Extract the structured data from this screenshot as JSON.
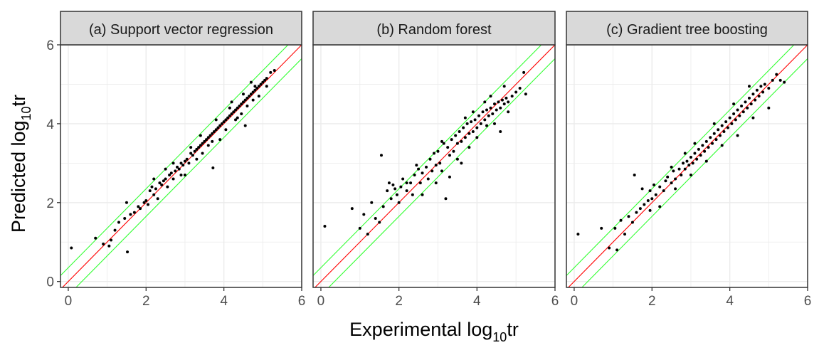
{
  "figure": {
    "xlabel_main": "Experimental log",
    "xlabel_sub": "10",
    "xlabel_tail": "tr",
    "ylabel_main": "Predicted log",
    "ylabel_sub": "10",
    "ylabel_tail": "tr"
  },
  "colors": {
    "identity_line": "#ff0000",
    "band_line": "#33ff33",
    "point": "#000000",
    "strip_fill": "#d9d9d9",
    "grid": "#ebebeb"
  },
  "chart_data": [
    {
      "type": "scatter",
      "title": "(a) Support vector regression",
      "xlim": [
        -0.2,
        6
      ],
      "ylim": [
        -0.15,
        6
      ],
      "xticks": [
        "0",
        "2",
        "4",
        "6"
      ],
      "yticks": [
        "0",
        "2",
        "4",
        "6"
      ],
      "xtick_values": [
        0,
        2,
        4,
        6
      ],
      "ytick_values": [
        0,
        2,
        4,
        6
      ],
      "identity_line": {
        "slope": 1,
        "intercept": 0
      },
      "band_lines": [
        {
          "slope": 1,
          "intercept": 0.35
        },
        {
          "slope": 1,
          "intercept": -0.35
        }
      ],
      "points": [
        [
          0.08,
          0.85
        ],
        [
          0.7,
          1.1
        ],
        [
          0.9,
          0.95
        ],
        [
          1.05,
          0.9
        ],
        [
          1.1,
          1.05
        ],
        [
          1.2,
          1.3
        ],
        [
          1.3,
          1.5
        ],
        [
          1.45,
          1.6
        ],
        [
          1.5,
          2.0
        ],
        [
          1.52,
          0.75
        ],
        [
          1.6,
          1.7
        ],
        [
          1.7,
          1.75
        ],
        [
          1.8,
          1.9
        ],
        [
          1.85,
          1.85
        ],
        [
          1.95,
          2.0
        ],
        [
          2.0,
          2.05
        ],
        [
          2.05,
          1.95
        ],
        [
          2.1,
          2.3
        ],
        [
          2.15,
          2.4
        ],
        [
          2.2,
          2.2
        ],
        [
          2.25,
          2.35
        ],
        [
          2.3,
          2.1
        ],
        [
          2.35,
          2.5
        ],
        [
          2.4,
          2.45
        ],
        [
          2.45,
          2.55
        ],
        [
          2.5,
          2.6
        ],
        [
          2.55,
          2.4
        ],
        [
          2.6,
          2.7
        ],
        [
          2.65,
          2.75
        ],
        [
          2.7,
          2.6
        ],
        [
          2.75,
          2.8
        ],
        [
          2.8,
          2.9
        ],
        [
          2.85,
          2.85
        ],
        [
          2.9,
          3.0
        ],
        [
          2.95,
          2.95
        ],
        [
          3.0,
          3.05
        ],
        [
          3.05,
          3.1
        ],
        [
          3.1,
          3.0
        ],
        [
          3.15,
          3.25
        ],
        [
          3.2,
          3.2
        ],
        [
          3.25,
          3.3
        ],
        [
          3.3,
          3.35
        ],
        [
          3.35,
          3.4
        ],
        [
          3.4,
          3.45
        ],
        [
          3.45,
          3.5
        ],
        [
          3.5,
          3.55
        ],
        [
          3.55,
          3.6
        ],
        [
          3.6,
          3.65
        ],
        [
          3.65,
          3.7
        ],
        [
          3.7,
          3.75
        ],
        [
          3.72,
          2.88
        ],
        [
          3.75,
          3.8
        ],
        [
          3.8,
          3.85
        ],
        [
          3.85,
          3.9
        ],
        [
          3.9,
          3.95
        ],
        [
          3.95,
          4.0
        ],
        [
          4.0,
          4.05
        ],
        [
          4.05,
          4.1
        ],
        [
          4.1,
          4.15
        ],
        [
          4.15,
          4.2
        ],
        [
          4.2,
          4.25
        ],
        [
          4.25,
          4.3
        ],
        [
          4.3,
          4.35
        ],
        [
          4.35,
          4.4
        ],
        [
          4.4,
          4.45
        ],
        [
          4.45,
          4.5
        ],
        [
          4.5,
          4.55
        ],
        [
          4.55,
          4.6
        ],
        [
          4.6,
          4.65
        ],
        [
          4.65,
          4.7
        ],
        [
          4.7,
          4.75
        ],
        [
          4.75,
          4.8
        ],
        [
          4.8,
          4.85
        ],
        [
          4.85,
          4.9
        ],
        [
          4.9,
          4.95
        ],
        [
          4.95,
          5.0
        ],
        [
          5.0,
          5.05
        ],
        [
          5.05,
          5.1
        ],
        [
          5.1,
          5.15
        ],
        [
          5.2,
          5.3
        ],
        [
          5.3,
          5.35
        ],
        [
          4.55,
          3.95
        ],
        [
          3.4,
          3.7
        ],
        [
          4.2,
          4.55
        ],
        [
          3.0,
          2.7
        ],
        [
          2.5,
          2.85
        ],
        [
          4.7,
          5.05
        ],
        [
          3.9,
          3.6
        ],
        [
          4.3,
          4.1
        ],
        [
          3.6,
          3.45
        ],
        [
          4.45,
          4.25
        ],
        [
          2.7,
          3.0
        ],
        [
          3.3,
          3.1
        ],
        [
          4.05,
          3.85
        ],
        [
          4.6,
          4.45
        ],
        [
          4.9,
          4.7
        ],
        [
          3.8,
          4.1
        ],
        [
          2.2,
          2.6
        ],
        [
          3.45,
          3.25
        ],
        [
          4.15,
          4.4
        ],
        [
          4.75,
          4.6
        ],
        [
          2.9,
          2.7
        ],
        [
          3.15,
          3.4
        ],
        [
          3.7,
          3.55
        ],
        [
          4.35,
          4.15
        ],
        [
          4.5,
          4.75
        ],
        [
          4.8,
          4.95
        ],
        [
          5.1,
          4.95
        ]
      ]
    },
    {
      "type": "scatter",
      "title": "(b) Random forest",
      "xlim": [
        -0.2,
        6
      ],
      "ylim": [
        -0.15,
        6
      ],
      "xticks": [
        "0",
        "2",
        "4",
        "6"
      ],
      "yticks": [
        "0",
        "2",
        "4",
        "6"
      ],
      "xtick_values": [
        0,
        2,
        4,
        6
      ],
      "ytick_values": [
        0,
        2,
        4,
        6
      ],
      "identity_line": {
        "slope": 1,
        "intercept": 0
      },
      "band_lines": [
        {
          "slope": 1,
          "intercept": 0.35
        },
        {
          "slope": 1,
          "intercept": -0.35
        }
      ],
      "points": [
        [
          0.1,
          1.4
        ],
        [
          0.8,
          1.85
        ],
        [
          1.0,
          1.35
        ],
        [
          1.1,
          1.7
        ],
        [
          1.2,
          1.2
        ],
        [
          1.3,
          2.0
        ],
        [
          1.4,
          1.6
        ],
        [
          1.5,
          1.5
        ],
        [
          1.55,
          3.2
        ],
        [
          1.6,
          1.9
        ],
        [
          1.7,
          2.3
        ],
        [
          1.75,
          2.5
        ],
        [
          1.8,
          2.1
        ],
        [
          1.9,
          2.35
        ],
        [
          1.95,
          2.2
        ],
        [
          2.0,
          2.0
        ],
        [
          2.05,
          2.4
        ],
        [
          2.1,
          2.6
        ],
        [
          2.2,
          2.3
        ],
        [
          2.3,
          2.5
        ],
        [
          2.35,
          2.2
        ],
        [
          2.4,
          2.7
        ],
        [
          2.5,
          2.85
        ],
        [
          2.55,
          2.5
        ],
        [
          2.6,
          2.75
        ],
        [
          2.7,
          2.9
        ],
        [
          2.75,
          2.6
        ],
        [
          2.8,
          3.1
        ],
        [
          2.85,
          2.8
        ],
        [
          2.9,
          3.25
        ],
        [
          2.95,
          2.95
        ],
        [
          3.0,
          3.3
        ],
        [
          3.05,
          3.0
        ],
        [
          3.1,
          2.8
        ],
        [
          3.15,
          3.5
        ],
        [
          3.2,
          2.1
        ],
        [
          3.25,
          3.4
        ],
        [
          3.3,
          3.2
        ],
        [
          3.35,
          3.6
        ],
        [
          3.4,
          3.3
        ],
        [
          3.45,
          3.7
        ],
        [
          3.5,
          3.5
        ],
        [
          3.55,
          3.8
        ],
        [
          3.6,
          3.55
        ],
        [
          3.65,
          3.9
        ],
        [
          3.7,
          3.65
        ],
        [
          3.75,
          4.0
        ],
        [
          3.8,
          3.75
        ],
        [
          3.85,
          4.05
        ],
        [
          3.9,
          3.8
        ],
        [
          3.95,
          4.1
        ],
        [
          4.0,
          3.9
        ],
        [
          4.05,
          4.2
        ],
        [
          4.1,
          4.0
        ],
        [
          4.15,
          4.3
        ],
        [
          4.2,
          4.1
        ],
        [
          4.25,
          4.35
        ],
        [
          4.3,
          4.2
        ],
        [
          4.35,
          4.4
        ],
        [
          4.4,
          4.25
        ],
        [
          4.45,
          4.5
        ],
        [
          4.5,
          4.35
        ],
        [
          4.55,
          4.55
        ],
        [
          4.6,
          4.4
        ],
        [
          4.65,
          4.6
        ],
        [
          4.7,
          4.5
        ],
        [
          4.75,
          4.65
        ],
        [
          4.8,
          4.55
        ],
        [
          4.9,
          4.7
        ],
        [
          5.0,
          4.8
        ],
        [
          5.1,
          4.9
        ],
        [
          5.2,
          5.3
        ],
        [
          5.25,
          4.75
        ],
        [
          4.6,
          3.8
        ],
        [
          4.25,
          3.95
        ],
        [
          3.8,
          3.4
        ],
        [
          3.6,
          3.0
        ],
        [
          3.3,
          2.65
        ],
        [
          2.95,
          2.5
        ],
        [
          2.6,
          2.2
        ],
        [
          3.5,
          3.1
        ],
        [
          4.0,
          3.65
        ],
        [
          4.45,
          4.0
        ],
        [
          4.8,
          4.3
        ],
        [
          2.2,
          2.5
        ],
        [
          1.85,
          2.45
        ],
        [
          3.1,
          3.55
        ],
        [
          3.7,
          4.15
        ],
        [
          4.2,
          4.55
        ],
        [
          4.7,
          4.95
        ],
        [
          2.45,
          2.95
        ],
        [
          3.9,
          4.3
        ],
        [
          4.35,
          4.7
        ]
      ]
    },
    {
      "type": "scatter",
      "title": "(c) Gradient tree boosting",
      "xlim": [
        -0.2,
        6
      ],
      "ylim": [
        -0.15,
        6
      ],
      "xticks": [
        "0",
        "2",
        "4",
        "6"
      ],
      "yticks": [
        "0",
        "2",
        "4",
        "6"
      ],
      "xtick_values": [
        0,
        2,
        4,
        6
      ],
      "ytick_values": [
        0,
        2,
        4,
        6
      ],
      "identity_line": {
        "slope": 1,
        "intercept": 0
      },
      "band_lines": [
        {
          "slope": 1,
          "intercept": 0.35
        },
        {
          "slope": 1,
          "intercept": -0.35
        }
      ],
      "points": [
        [
          0.1,
          1.2
        ],
        [
          0.7,
          1.35
        ],
        [
          0.9,
          0.85
        ],
        [
          1.05,
          1.35
        ],
        [
          1.1,
          0.8
        ],
        [
          1.2,
          1.55
        ],
        [
          1.3,
          1.2
        ],
        [
          1.4,
          1.65
        ],
        [
          1.5,
          1.5
        ],
        [
          1.55,
          2.7
        ],
        [
          1.6,
          1.75
        ],
        [
          1.7,
          1.85
        ],
        [
          1.75,
          2.35
        ],
        [
          1.8,
          1.95
        ],
        [
          1.9,
          2.05
        ],
        [
          1.95,
          2.3
        ],
        [
          2.0,
          2.1
        ],
        [
          2.05,
          2.45
        ],
        [
          2.1,
          2.2
        ],
        [
          2.2,
          2.4
        ],
        [
          2.3,
          2.3
        ],
        [
          2.35,
          2.55
        ],
        [
          2.4,
          2.65
        ],
        [
          2.5,
          2.5
        ],
        [
          2.55,
          2.8
        ],
        [
          2.6,
          2.6
        ],
        [
          2.7,
          2.85
        ],
        [
          2.75,
          2.7
        ],
        [
          2.8,
          3.0
        ],
        [
          2.85,
          2.85
        ],
        [
          2.9,
          3.05
        ],
        [
          2.95,
          2.95
        ],
        [
          3.0,
          3.15
        ],
        [
          3.05,
          3.0
        ],
        [
          3.1,
          3.25
        ],
        [
          3.15,
          3.1
        ],
        [
          3.2,
          3.35
        ],
        [
          3.25,
          3.2
        ],
        [
          3.3,
          3.45
        ],
        [
          3.35,
          3.3
        ],
        [
          3.4,
          3.55
        ],
        [
          3.45,
          3.4
        ],
        [
          3.5,
          3.65
        ],
        [
          3.55,
          3.5
        ],
        [
          3.6,
          3.75
        ],
        [
          3.65,
          3.6
        ],
        [
          3.7,
          3.85
        ],
        [
          3.75,
          3.7
        ],
        [
          3.8,
          3.95
        ],
        [
          3.85,
          3.8
        ],
        [
          3.9,
          4.05
        ],
        [
          3.95,
          3.9
        ],
        [
          4.0,
          4.15
        ],
        [
          4.05,
          4.0
        ],
        [
          4.1,
          4.25
        ],
        [
          4.15,
          4.1
        ],
        [
          4.2,
          4.35
        ],
        [
          4.25,
          4.2
        ],
        [
          4.3,
          4.45
        ],
        [
          4.35,
          4.3
        ],
        [
          4.4,
          4.55
        ],
        [
          4.45,
          4.4
        ],
        [
          4.5,
          4.65
        ],
        [
          4.55,
          4.5
        ],
        [
          4.6,
          4.75
        ],
        [
          4.65,
          4.6
        ],
        [
          4.7,
          4.85
        ],
        [
          4.75,
          4.7
        ],
        [
          4.8,
          4.95
        ],
        [
          4.85,
          4.8
        ],
        [
          4.9,
          5.0
        ],
        [
          5.0,
          4.9
        ],
        [
          5.1,
          5.1
        ],
        [
          5.2,
          5.25
        ],
        [
          5.3,
          5.1
        ],
        [
          5.4,
          5.05
        ],
        [
          5.0,
          4.4
        ],
        [
          4.6,
          4.15
        ],
        [
          4.2,
          3.7
        ],
        [
          3.8,
          3.45
        ],
        [
          3.4,
          3.05
        ],
        [
          3.0,
          2.7
        ],
        [
          2.6,
          2.35
        ],
        [
          2.2,
          1.9
        ],
        [
          1.95,
          1.8
        ],
        [
          2.5,
          2.9
        ],
        [
          3.1,
          3.5
        ],
        [
          3.6,
          4.0
        ],
        [
          4.1,
          4.5
        ],
        [
          4.5,
          4.95
        ],
        [
          2.85,
          3.25
        ]
      ]
    }
  ]
}
